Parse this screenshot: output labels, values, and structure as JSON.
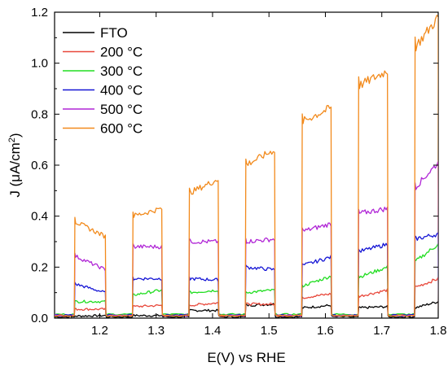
{
  "chart_data": {
    "type": "line",
    "title": "",
    "xlabel": "E(V) vs RHE",
    "ylabel_main": "J (",
    "ylabel_mu": "μ",
    "ylabel_unit": "A/cm",
    "ylabel_sup": "2",
    "ylabel_close": ")",
    "xlim": [
      1.12,
      1.8
    ],
    "ylim": [
      0.0,
      1.2
    ],
    "x_ticks": [
      1.2,
      1.3,
      1.4,
      1.5,
      1.6,
      1.7,
      1.8
    ],
    "x_tick_labels": [
      "1.2",
      "1.3",
      "1.4",
      "1.5",
      "1.6",
      "1.7",
      "1.8"
    ],
    "y_ticks": [
      0.0,
      0.2,
      0.4,
      0.6,
      0.8,
      1.0,
      1.2
    ],
    "y_tick_labels": [
      "0.0",
      "0.2",
      "0.4",
      "0.6",
      "0.8",
      "1.0",
      "1.2"
    ],
    "legend_position": "top-left",
    "light_on_intervals": [
      [
        1.155,
        1.21
      ],
      [
        1.258,
        1.31
      ],
      [
        1.358,
        1.41
      ],
      [
        1.458,
        1.51
      ],
      [
        1.558,
        1.61
      ],
      [
        1.658,
        1.71
      ],
      [
        1.758,
        1.8
      ]
    ],
    "series": [
      {
        "name": "FTO",
        "color": "#000000",
        "on_start": [
          0.008,
          0.01,
          0.03,
          0.05,
          0.04,
          0.04,
          0.04
        ],
        "on_end": [
          0.01,
          0.01,
          0.03,
          0.055,
          0.05,
          0.045,
          0.065
        ],
        "dark": 0.005
      },
      {
        "name": "200 °C",
        "color": "#e8473a",
        "on_start": [
          0.035,
          0.045,
          0.05,
          0.055,
          0.08,
          0.085,
          0.12
        ],
        "on_end": [
          0.035,
          0.05,
          0.06,
          0.055,
          0.095,
          0.11,
          0.155
        ],
        "dark": 0.01
      },
      {
        "name": "300 °C",
        "color": "#20dd20",
        "on_start": [
          0.065,
          0.09,
          0.1,
          0.1,
          0.125,
          0.16,
          0.22
        ],
        "on_end": [
          0.065,
          0.11,
          0.11,
          0.11,
          0.165,
          0.2,
          0.29
        ],
        "dark": 0.015
      },
      {
        "name": "400 °C",
        "color": "#1515d5",
        "on_start": [
          0.135,
          0.155,
          0.155,
          0.2,
          0.205,
          0.26,
          0.31
        ],
        "on_end": [
          0.1,
          0.155,
          0.15,
          0.19,
          0.24,
          0.29,
          0.33
        ],
        "dark": 0.012
      },
      {
        "name": "500 °C",
        "color": "#b026d6",
        "on_start": [
          0.245,
          0.28,
          0.3,
          0.3,
          0.34,
          0.41,
          0.51
        ],
        "on_end": [
          0.19,
          0.28,
          0.3,
          0.31,
          0.37,
          0.43,
          0.61
        ],
        "dark": 0.01
      },
      {
        "name": "600 °C",
        "color": "#f28a1c",
        "on_start": [
          0.38,
          0.4,
          0.49,
          0.6,
          0.77,
          0.91,
          1.06
        ],
        "on_end": [
          0.32,
          0.43,
          0.545,
          0.66,
          0.825,
          0.97,
          1.18
        ],
        "dark": 0.01
      }
    ]
  }
}
